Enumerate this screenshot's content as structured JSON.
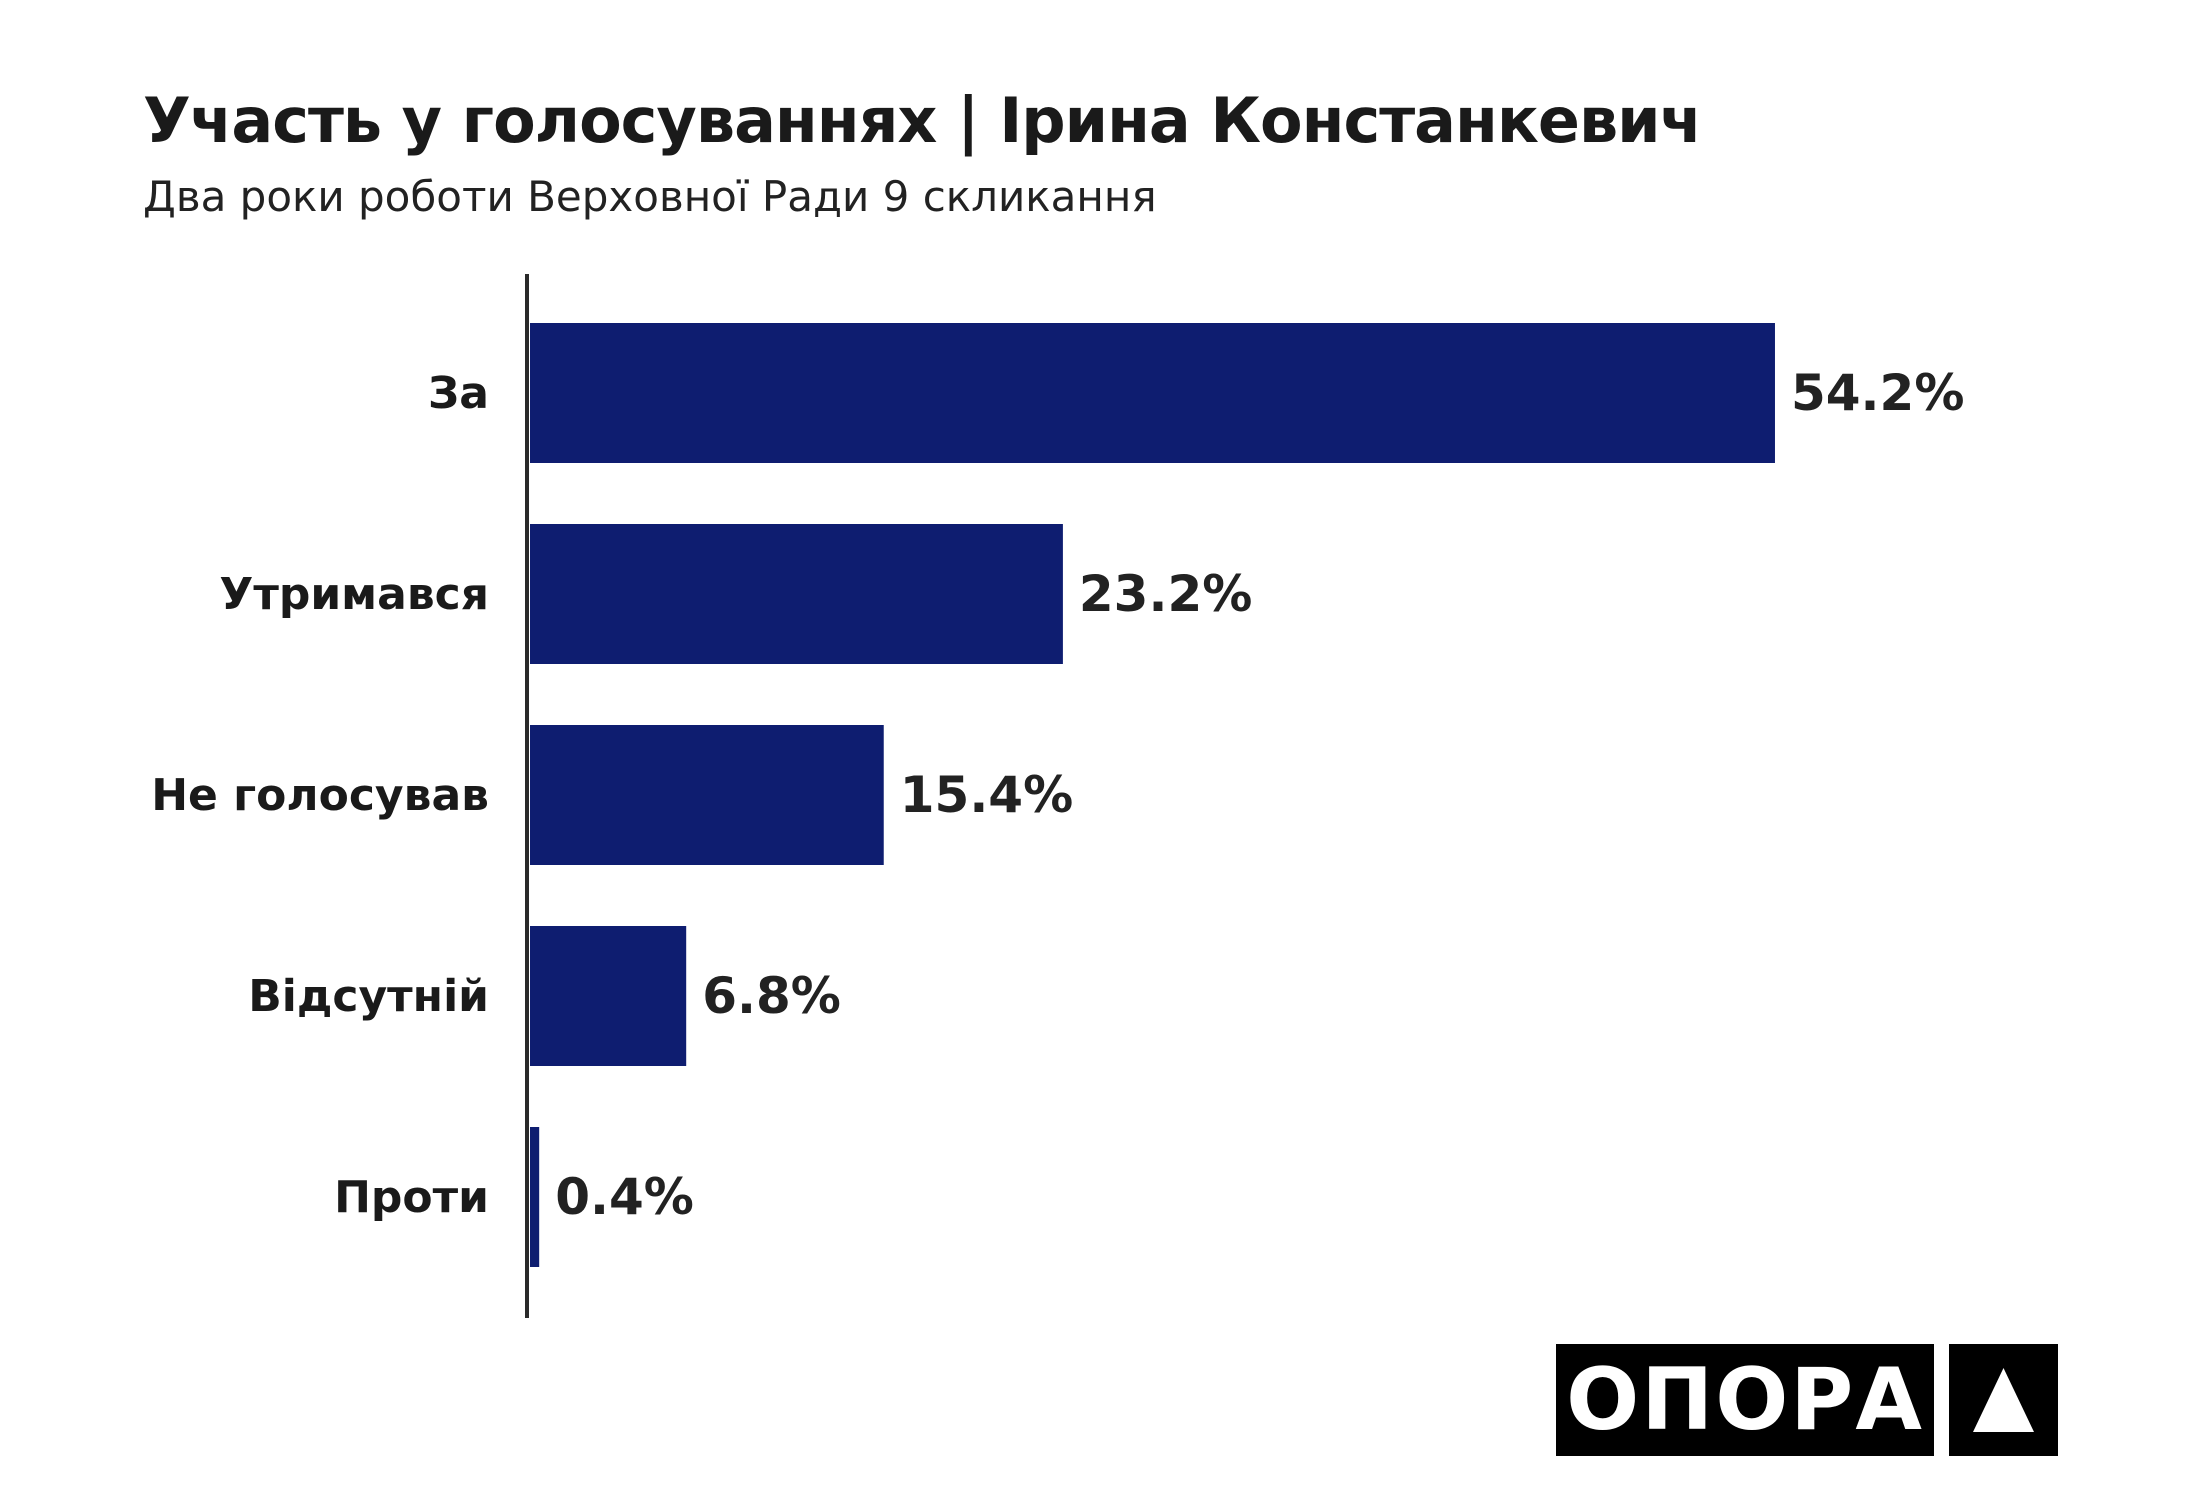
{
  "chart_data": {
    "type": "bar",
    "orientation": "horizontal",
    "title": "Участь у голосуваннях | Ірина Констанкевич",
    "subtitle": "Два роки роботи Верховної Ради 9 скликання",
    "categories": [
      "За",
      "Утримався",
      "Не голосував",
      "Відсутній",
      "Проти"
    ],
    "values": [
      54.2,
      23.2,
      15.4,
      6.8,
      0.4
    ],
    "value_labels": [
      "54.2%",
      "23.2%",
      "15.4%",
      "6.8%",
      "0.4%"
    ],
    "unit": "%",
    "xlabel": "",
    "ylabel": "",
    "grid": false,
    "bar_color": "#0e1d70"
  },
  "logo": {
    "text": "ОПОРА",
    "icon": "triangle-icon"
  }
}
